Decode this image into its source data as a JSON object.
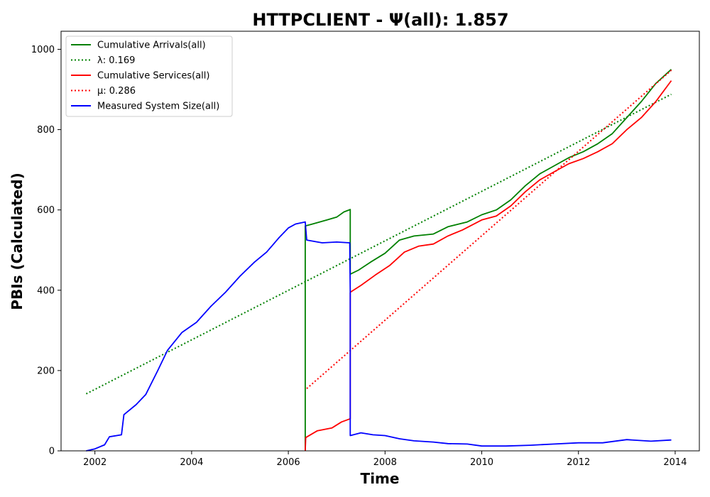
{
  "chart_data": {
    "type": "line",
    "title": "HTTPCLIENT -  Ψ(all): 1.857",
    "xlabel": "Time",
    "ylabel": "PBIs (Calculated)",
    "xlim": [
      2001.3,
      2014.5
    ],
    "ylim": [
      0,
      1045
    ],
    "x_ticks": [
      2002,
      2004,
      2006,
      2008,
      2010,
      2012,
      2014
    ],
    "y_ticks": [
      0,
      200,
      400,
      600,
      800,
      1000
    ],
    "grid": false,
    "legend_position": "top-left",
    "series": [
      {
        "name": "Cumulative Arrivals(all)",
        "color": "#008000",
        "style": "solid",
        "x": [
          2006.35,
          2006.35,
          2006.5,
          2006.8,
          2007.0,
          2007.15,
          2007.28,
          2007.28,
          2007.45,
          2007.7,
          2008.0,
          2008.3,
          2008.6,
          2009.0,
          2009.3,
          2009.7,
          2010.0,
          2010.3,
          2010.6,
          2010.9,
          2011.2,
          2011.5,
          2011.8,
          2012.1,
          2012.4,
          2012.7,
          2013.0,
          2013.3,
          2013.6,
          2013.92
        ],
        "y": [
          0,
          560,
          565,
          575,
          582,
          595,
          601,
          440,
          450,
          470,
          492,
          525,
          535,
          540,
          558,
          570,
          588,
          600,
          625,
          660,
          690,
          710,
          730,
          745,
          765,
          790,
          830,
          870,
          915,
          950
        ]
      },
      {
        "name": "λ: 0.169",
        "color": "#008000",
        "style": "dotted",
        "x": [
          2001.82,
          2013.92
        ],
        "y": [
          142,
          888
        ]
      },
      {
        "name": "Cumulative Services(all)",
        "color": "#ff0000",
        "style": "solid",
        "x": [
          2006.35,
          2006.35,
          2006.36,
          2006.6,
          2006.9,
          2007.1,
          2007.28,
          2007.28,
          2007.5,
          2007.8,
          2008.1,
          2008.4,
          2008.7,
          2009.0,
          2009.3,
          2009.6,
          2010.0,
          2010.3,
          2010.6,
          2010.9,
          2011.2,
          2011.5,
          2011.8,
          2012.1,
          2012.4,
          2012.7,
          2013.0,
          2013.3,
          2013.6,
          2013.92
        ],
        "y": [
          0,
          0,
          33,
          50,
          57,
          72,
          80,
          395,
          412,
          438,
          462,
          495,
          510,
          515,
          535,
          550,
          575,
          585,
          610,
          645,
          675,
          695,
          715,
          728,
          745,
          765,
          800,
          830,
          870,
          922
        ]
      },
      {
        "name": "μ: 0.286",
        "color": "#ff0000",
        "style": "dotted",
        "x": [
          2006.38,
          2013.92
        ],
        "y": [
          155,
          948
        ]
      },
      {
        "name": "Measured System Size(all)",
        "color": "#0000ff",
        "style": "solid",
        "x": [
          2001.82,
          2002.0,
          2002.2,
          2002.3,
          2002.55,
          2002.6,
          2002.85,
          2003.05,
          2003.3,
          2003.5,
          2003.8,
          2004.1,
          2004.4,
          2004.7,
          2005.0,
          2005.3,
          2005.55,
          2005.8,
          2006.0,
          2006.15,
          2006.35,
          2006.38,
          2006.7,
          2007.0,
          2007.27,
          2007.28,
          2007.28,
          2007.5,
          2007.75,
          2008.0,
          2008.3,
          2008.6,
          2009.0,
          2009.3,
          2009.7,
          2010.0,
          2010.5,
          2011.0,
          2011.5,
          2012.0,
          2012.5,
          2013.0,
          2013.5,
          2013.92
        ],
        "y": [
          0,
          5,
          15,
          35,
          40,
          90,
          115,
          140,
          200,
          250,
          295,
          320,
          360,
          395,
          435,
          470,
          495,
          530,
          555,
          565,
          570,
          525,
          518,
          520,
          518,
          400,
          38,
          45,
          40,
          38,
          30,
          25,
          22,
          18,
          17,
          12,
          12,
          14,
          17,
          20,
          20,
          28,
          24,
          27
        ]
      }
    ]
  }
}
